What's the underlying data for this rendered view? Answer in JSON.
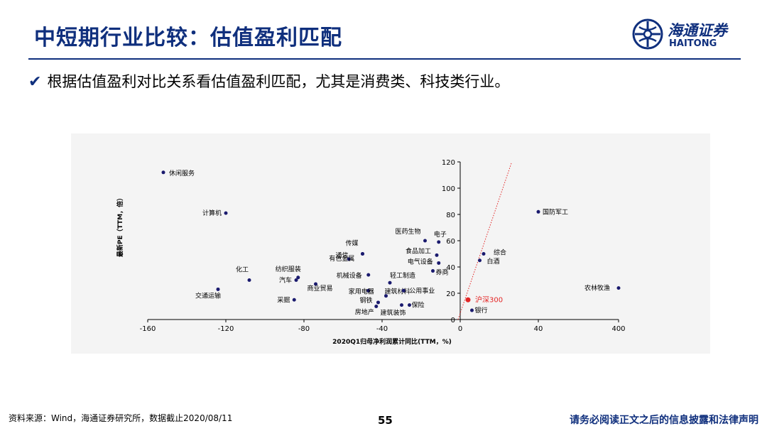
{
  "slide": {
    "title": "中短期行业比较：估值盈利匹配",
    "bullet": "根据估值盈利对比关系看估值盈利匹配，尤其是消费类、科技类行业。",
    "logo": {
      "cn": "海通证券",
      "en": "HAITONG"
    },
    "source": "资料来源：Wind，海通证券研究所，数据截止2020/08/11",
    "page": "55",
    "disclaimer": "请务必阅读正文之后的信息披露和法律声明",
    "colors": {
      "brand": "#0f2f7d",
      "points": "#1a1a6e",
      "highlight": "#e32626"
    },
    "icons": {
      "check": "check-icon",
      "logo": "haitong-logo-icon"
    }
  },
  "chart_data": {
    "type": "scatter",
    "xlabel": "2020Q1归母净利润累计同比(TTM，%)",
    "ylabel": "最新PE（TTM，倍）",
    "x_ticks": [
      "-160",
      "-120",
      "-80",
      "-40",
      "0",
      "40",
      "400"
    ],
    "y_ticks": [
      "0",
      "20",
      "40",
      "60",
      "80",
      "100",
      "120"
    ],
    "ylim": [
      0,
      120
    ],
    "x_axis_note": "broken axis: segment from 40 to 400 compressed",
    "reference_line": {
      "style": "red dotted",
      "label": ""
    },
    "points": [
      {
        "label": "休闲服务",
        "x": -152,
        "y": 112
      },
      {
        "label": "计算机",
        "x": -120,
        "y": 81
      },
      {
        "label": "化工",
        "x": -108,
        "y": 30
      },
      {
        "label": "交通运输",
        "x": -124,
        "y": 23
      },
      {
        "label": "采掘",
        "x": -85,
        "y": 15
      },
      {
        "label": "纺织服装",
        "x": -83,
        "y": 32
      },
      {
        "label": "汽车",
        "x": -84,
        "y": 30
      },
      {
        "label": "商业贸易",
        "x": -74,
        "y": 27
      },
      {
        "label": "有色金属",
        "x": -57,
        "y": 46
      },
      {
        "label": "通信",
        "x": -50,
        "y": 50
      },
      {
        "label": "传媒",
        "x": -50,
        "y": 50
      },
      {
        "label": "机械设备",
        "x": -47,
        "y": 34
      },
      {
        "label": "家用电器",
        "x": -47,
        "y": 22
      },
      {
        "label": "钢铁",
        "x": -42,
        "y": 13
      },
      {
        "label": "房地产",
        "x": -43,
        "y": 10
      },
      {
        "label": "轻工制造",
        "x": -36,
        "y": 28
      },
      {
        "label": "建筑材料",
        "x": -38,
        "y": 18
      },
      {
        "label": "保险",
        "x": -26,
        "y": 11
      },
      {
        "label": "建筑装饰",
        "x": -30,
        "y": 11
      },
      {
        "label": "公用事业",
        "x": -29,
        "y": 22
      },
      {
        "label": "医药生物",
        "x": -18,
        "y": 60
      },
      {
        "label": "电子",
        "x": -11,
        "y": 59
      },
      {
        "label": "食品加工",
        "x": -12,
        "y": 49
      },
      {
        "label": "电气设备",
        "x": -11,
        "y": 43
      },
      {
        "label": "券商",
        "x": -14,
        "y": 37
      },
      {
        "label": "综合",
        "x": 12,
        "y": 50
      },
      {
        "label": "白酒",
        "x": 10,
        "y": 45
      },
      {
        "label": "银行",
        "x": 6,
        "y": 7
      },
      {
        "label": "沪深300",
        "x": 4,
        "y": 15
      },
      {
        "label": "国防军工",
        "x": 40,
        "y": 82
      },
      {
        "label": "农林牧渔",
        "x": 400,
        "y": 24
      }
    ]
  }
}
